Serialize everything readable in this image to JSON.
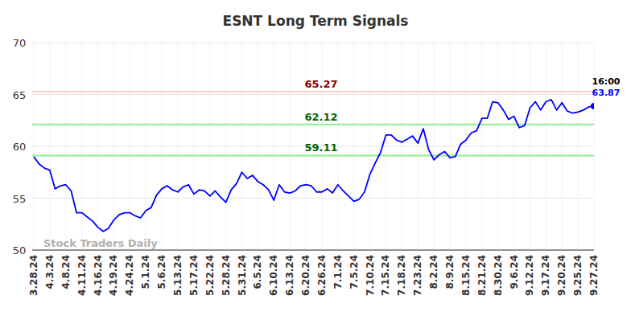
{
  "chart_data": {
    "type": "line",
    "title": "ESNT Long Term Signals",
    "watermark": "Stock Traders Daily",
    "categories": [
      "3.28.24",
      null,
      null,
      "4.3.24",
      null,
      null,
      "4.8.24",
      null,
      null,
      "4.11.24",
      null,
      null,
      "4.16.24",
      null,
      null,
      "4.19.24",
      null,
      null,
      "4.24.24",
      null,
      null,
      "5.1.24",
      null,
      null,
      "5.6.24",
      null,
      null,
      "5.13.24",
      null,
      null,
      "5.17.24",
      null,
      null,
      "5.22.24",
      null,
      null,
      "5.28.24",
      null,
      null,
      "5.31.24",
      null,
      null,
      "6.5.24",
      null,
      null,
      "6.10.24",
      null,
      null,
      "6.13.24",
      null,
      null,
      "6.20.24",
      null,
      null,
      "6.26.24",
      null,
      null,
      "7.1.24",
      null,
      null,
      "7.5.24",
      null,
      null,
      "7.10.24",
      null,
      null,
      "7.15.24",
      null,
      null,
      "7.18.24",
      null,
      null,
      "7.23.24",
      null,
      null,
      "8.2.24",
      null,
      null,
      "8.9.24",
      null,
      null,
      "8.15.24",
      null,
      null,
      "8.21.24",
      null,
      null,
      "8.30.24",
      null,
      null,
      "9.6.24",
      null,
      null,
      "9.12.24",
      null,
      null,
      "9.17.24",
      null,
      null,
      "9.20.24",
      null,
      null,
      "9.25.24",
      null,
      null,
      "9.27.24"
    ],
    "series": [
      {
        "name": "ESNT",
        "color": "#0000ff",
        "values": [
          59.0,
          58.3,
          57.9,
          57.7,
          55.9,
          56.2,
          56.3,
          55.7,
          53.6,
          53.6,
          53.2,
          52.8,
          52.2,
          51.8,
          52.1,
          52.9,
          53.4,
          53.6,
          53.6,
          53.3,
          53.1,
          53.8,
          54.1,
          55.3,
          55.9,
          56.2,
          55.8,
          55.6,
          56.1,
          56.3,
          55.4,
          55.8,
          55.7,
          55.2,
          55.7,
          55.1,
          54.6,
          55.8,
          56.4,
          57.5,
          56.9,
          57.2,
          56.6,
          56.3,
          55.8,
          54.8,
          56.3,
          55.6,
          55.5,
          55.7,
          56.2,
          56.3,
          56.2,
          55.6,
          55.6,
          55.9,
          55.5,
          56.3,
          55.7,
          55.2,
          54.7,
          54.9,
          55.6,
          57.3,
          58.4,
          59.4,
          61.1,
          61.1,
          60.6,
          60.4,
          60.7,
          61.0,
          60.3,
          61.7,
          59.7,
          58.7,
          59.2,
          59.5,
          58.9,
          59.0,
          60.2,
          60.6,
          61.3,
          61.5,
          62.7,
          62.7,
          64.3,
          64.2,
          63.5,
          62.6,
          62.9,
          61.8,
          62.0,
          63.7,
          64.3,
          63.5,
          64.3,
          64.5,
          63.5,
          64.2,
          63.4,
          63.2,
          63.3,
          63.5,
          63.8,
          63.87
        ]
      }
    ],
    "reference_lines": [
      {
        "value": 65.27,
        "label": "65.27",
        "color": "#ffcccc",
        "label_color": "#8b0000"
      },
      {
        "value": 62.12,
        "label": "62.12",
        "color": "#90ee90",
        "label_color": "#006400"
      },
      {
        "value": 59.11,
        "label": "59.11",
        "color": "#90ee90",
        "label_color": "#006400"
      }
    ],
    "end_label": {
      "time": "16:00",
      "value": "63.87"
    },
    "ylim": [
      50,
      70
    ],
    "yticks": [
      50,
      55,
      60,
      65,
      70
    ],
    "grid": true,
    "marker": "none"
  }
}
